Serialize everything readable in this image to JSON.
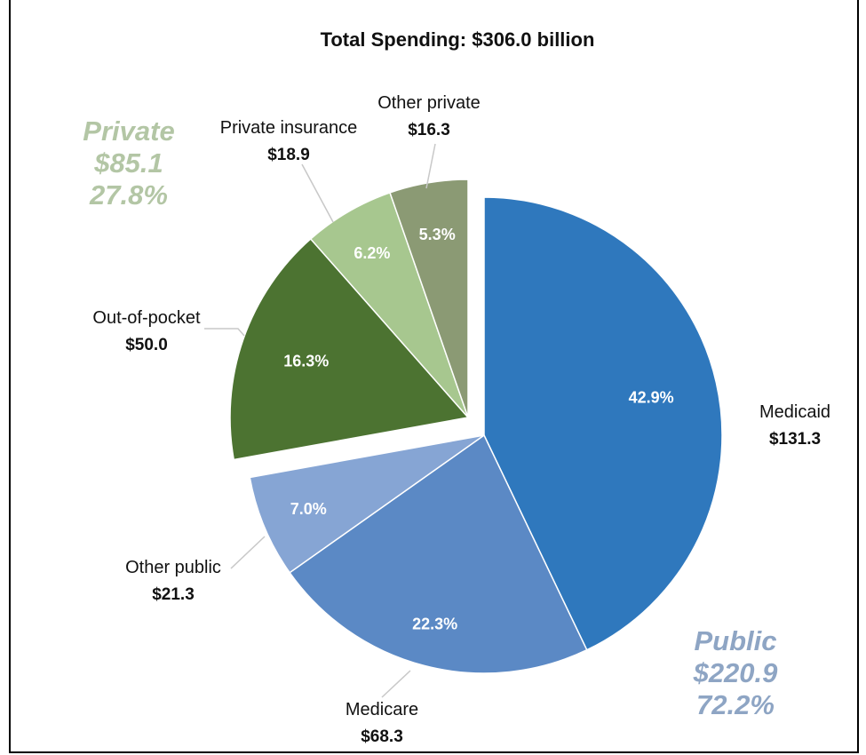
{
  "chart_data": {
    "type": "pie",
    "title": "Total Spending: $306.0 billion",
    "slices": [
      {
        "name": "Medicaid",
        "value": 131.3,
        "value_label": "$131.3",
        "percent_label": "42.9%",
        "color": "#2f78bd",
        "group": "public"
      },
      {
        "name": "Medicare",
        "value": 68.3,
        "value_label": "$68.3",
        "percent_label": "22.3%",
        "color": "#5b89c5",
        "group": "public"
      },
      {
        "name": "Other public",
        "value": 21.3,
        "value_label": "$21.3",
        "percent_label": "7.0%",
        "color": "#86a5d4",
        "group": "public"
      },
      {
        "name": "Out-of-pocket",
        "value": 50.0,
        "value_label": "$50.0",
        "percent_label": "16.3%",
        "color": "#4c7331",
        "group": "private"
      },
      {
        "name": "Private insurance",
        "value": 18.9,
        "value_label": "$18.9",
        "percent_label": "6.2%",
        "color": "#a7c78f",
        "group": "private"
      },
      {
        "name": "Other private",
        "value": 16.3,
        "value_label": "$16.3",
        "percent_label": "5.3%",
        "color": "#8b9a74",
        "group": "private"
      }
    ],
    "groups": {
      "public": {
        "name": "Public",
        "amount": "$220.9",
        "percent": "72.2%",
        "color": "#8ea5c4"
      },
      "private": {
        "name": "Private",
        "amount": "$85.1",
        "percent": "27.8%",
        "color": "#b3c6a5"
      }
    }
  }
}
